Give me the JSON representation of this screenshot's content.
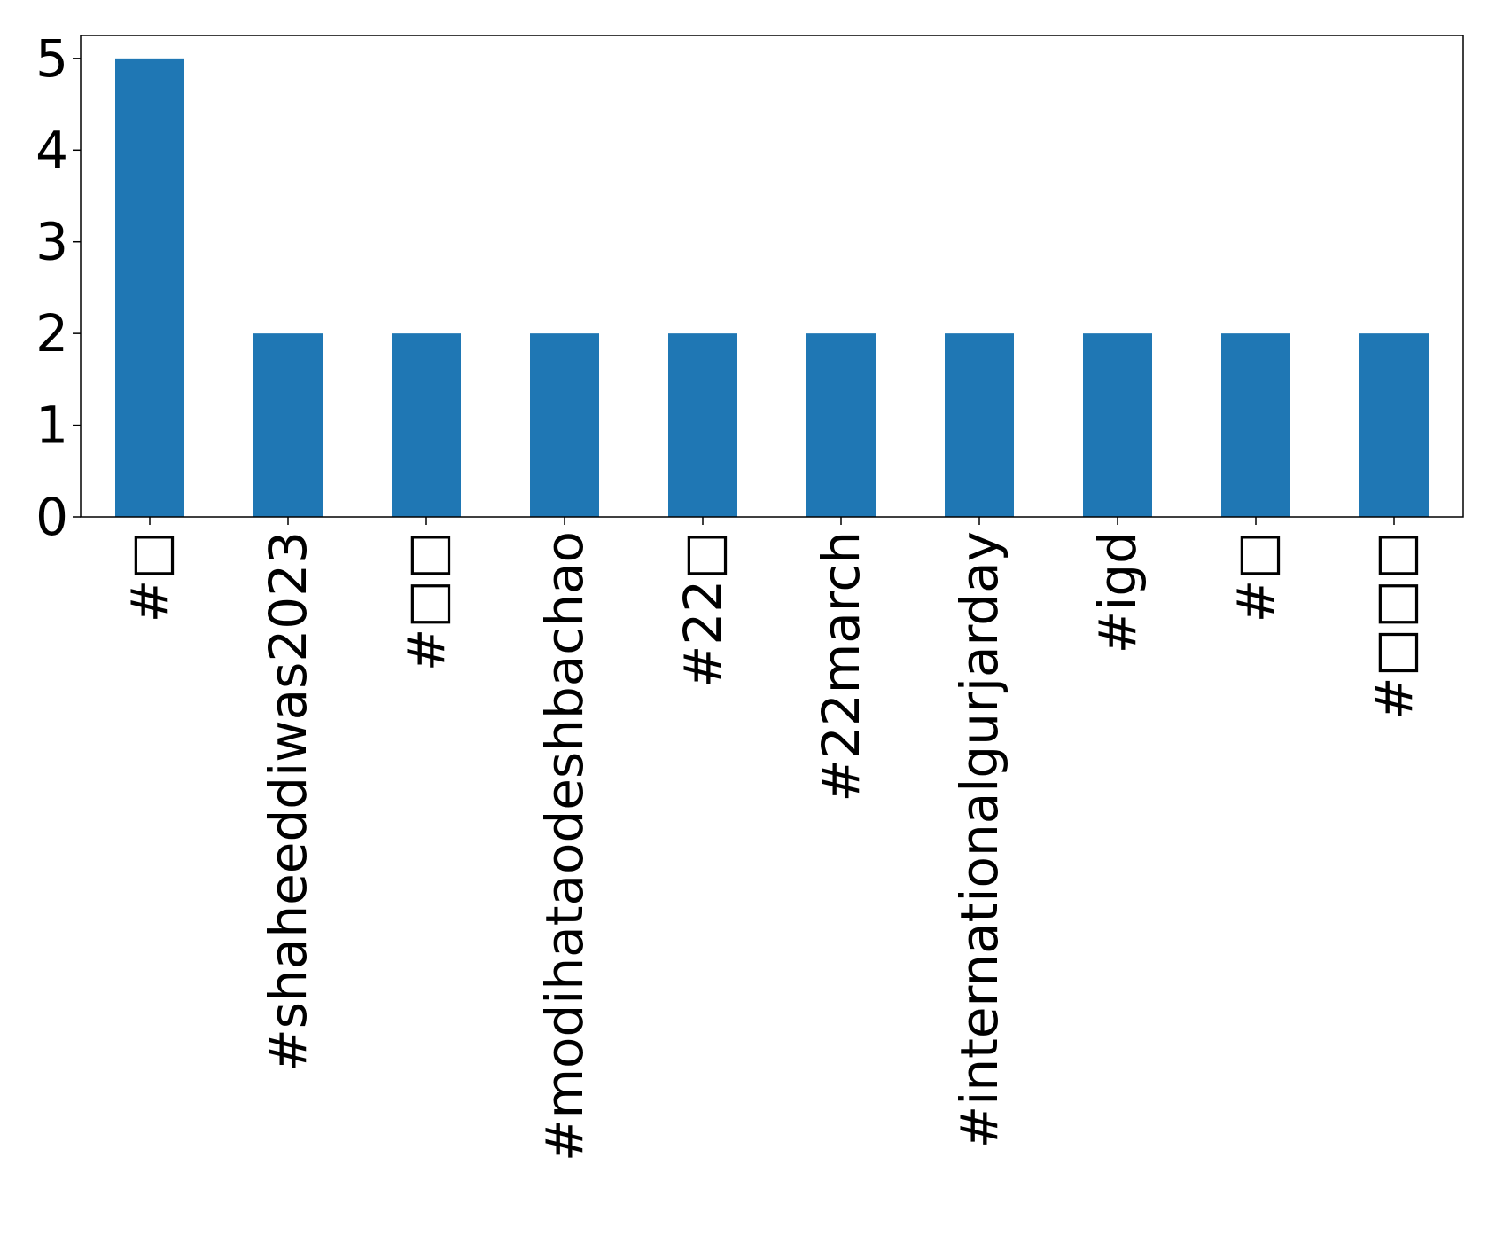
{
  "chart_data": {
    "type": "bar",
    "categories": [
      "#□",
      "#shaheeddiwas2023",
      "#□□",
      "#modihataodeshbachao",
      "#22□",
      "#22march",
      "#internationalgurjarday",
      "#igd",
      "#□",
      "#□□□"
    ],
    "values": [
      5,
      2,
      2,
      2,
      2,
      2,
      2,
      2,
      2,
      2
    ],
    "title": "",
    "xlabel": "",
    "ylabel": "",
    "ylim": [
      0,
      5.25
    ],
    "yticks": [
      0,
      1,
      2,
      3,
      4,
      5
    ],
    "grid": false,
    "legend": "none",
    "bar_color": "#1f77b4"
  }
}
